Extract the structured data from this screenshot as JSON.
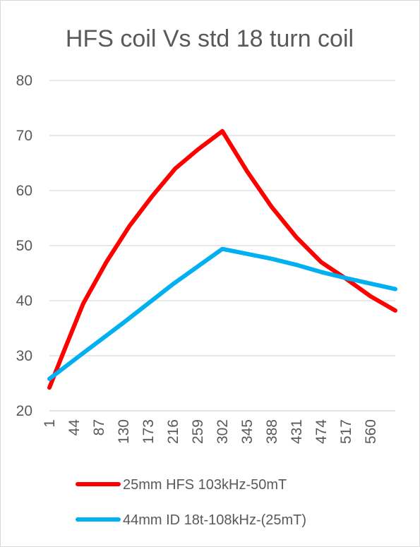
{
  "chart_data": {
    "type": "line",
    "title": "HFS coil Vs std 18 turn coil",
    "xlabel": "",
    "ylabel": "",
    "ylim": [
      20,
      80
    ],
    "yticks": [
      20,
      30,
      40,
      50,
      60,
      70,
      80
    ],
    "xtick_labels": [
      "1",
      "44",
      "87",
      "130",
      "173",
      "216",
      "259",
      "302",
      "345",
      "388",
      "431",
      "474",
      "517",
      "560"
    ],
    "x_range": [
      1,
      603
    ],
    "grid": true,
    "legend_position": "bottom",
    "series": [
      {
        "name": "25mm HFS 103kHz-50mT",
        "color": "#ff0000",
        "x": [
          1,
          25,
          60,
          100,
          140,
          180,
          220,
          260,
          302,
          345,
          388,
          431,
          474,
          517,
          560,
          603
        ],
        "y": [
          24.2,
          30.5,
          39.5,
          47.0,
          53.5,
          59.0,
          64.0,
          67.5,
          70.8,
          63.5,
          57.0,
          51.5,
          47.0,
          44.0,
          40.8,
          38.2
        ]
      },
      {
        "name": "44mm ID 18t-108kHz-(25mT)",
        "color": "#00b0f0",
        "x": [
          1,
          60,
          130,
          216,
          302,
          345,
          388,
          431,
          474,
          517,
          560,
          603
        ],
        "y": [
          25.8,
          30.5,
          36.0,
          43.0,
          49.4,
          48.5,
          47.6,
          46.5,
          45.2,
          44.1,
          43.1,
          42.1
        ]
      }
    ]
  }
}
